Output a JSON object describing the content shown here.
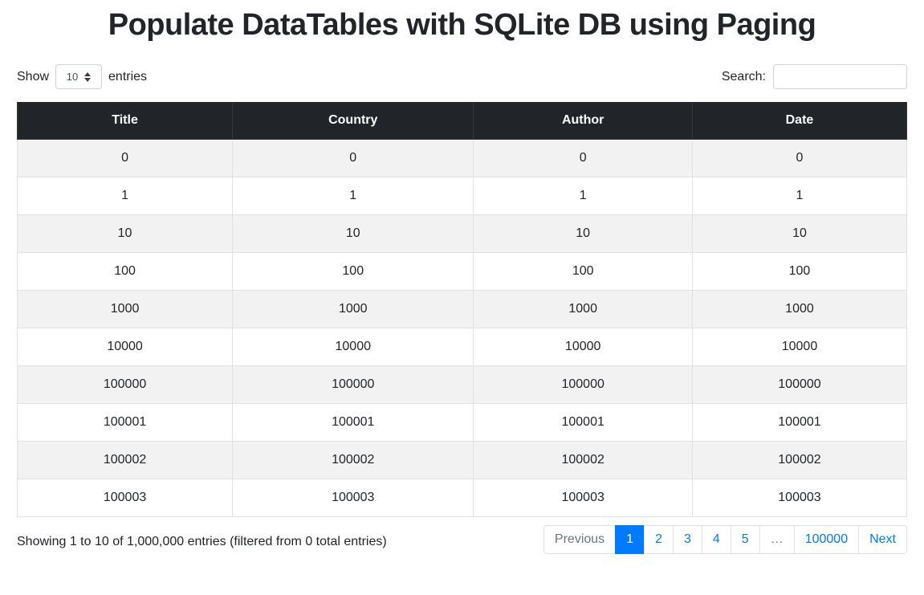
{
  "page": {
    "title": "Populate DataTables with SQLite DB using Paging"
  },
  "controls": {
    "show_label": "Show",
    "entries_label": "entries",
    "page_length": "10",
    "search_label": "Search:",
    "search_value": ""
  },
  "table": {
    "columns": [
      "Title",
      "Country",
      "Author",
      "Date"
    ],
    "rows": [
      [
        "0",
        "0",
        "0",
        "0"
      ],
      [
        "1",
        "1",
        "1",
        "1"
      ],
      [
        "10",
        "10",
        "10",
        "10"
      ],
      [
        "100",
        "100",
        "100",
        "100"
      ],
      [
        "1000",
        "1000",
        "1000",
        "1000"
      ],
      [
        "10000",
        "10000",
        "10000",
        "10000"
      ],
      [
        "100000",
        "100000",
        "100000",
        "100000"
      ],
      [
        "100001",
        "100001",
        "100001",
        "100001"
      ],
      [
        "100002",
        "100002",
        "100002",
        "100002"
      ],
      [
        "100003",
        "100003",
        "100003",
        "100003"
      ]
    ]
  },
  "footer": {
    "info": "Showing 1 to 10 of 1,000,000 entries (filtered from 0 total entries)"
  },
  "pagination": {
    "items": [
      {
        "label": "Previous",
        "state": "disabled",
        "name": "previous-button"
      },
      {
        "label": "1",
        "state": "active",
        "name": "page-1-button"
      },
      {
        "label": "2",
        "state": "link",
        "name": "page-2-button"
      },
      {
        "label": "3",
        "state": "link",
        "name": "page-3-button"
      },
      {
        "label": "4",
        "state": "link",
        "name": "page-4-button"
      },
      {
        "label": "5",
        "state": "link",
        "name": "page-5-button"
      },
      {
        "label": "…",
        "state": "disabled",
        "name": "ellipsis"
      },
      {
        "label": "100000",
        "state": "link",
        "name": "page-100000-button"
      },
      {
        "label": "Next",
        "state": "link",
        "name": "next-button"
      }
    ]
  },
  "colors": {
    "header_bg": "#212529",
    "stripe": "#f2f2f2",
    "border": "#dee2e6",
    "link": "#007bff",
    "active_bg": "#007bff",
    "muted": "#6c757d"
  }
}
